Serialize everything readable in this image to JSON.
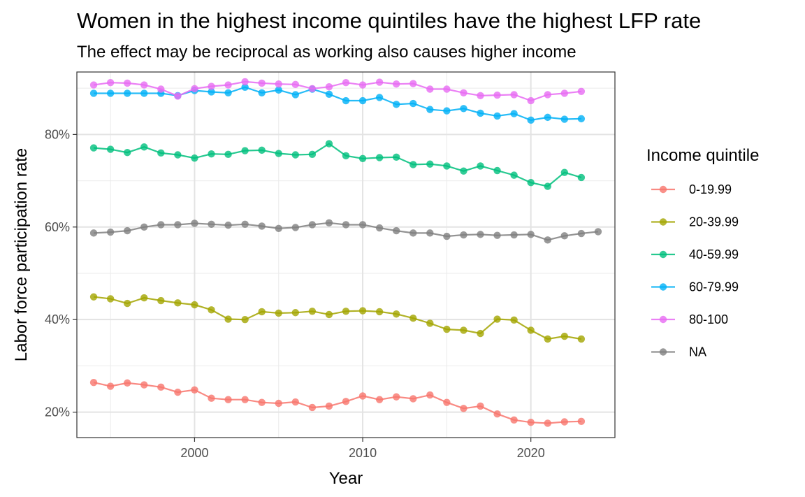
{
  "chart_data": {
    "type": "line",
    "title": "Women in the highest income quintiles have the highest LFP rate",
    "subtitle": "The effect may be reciprocal as working also causes higher income",
    "xlabel": "Year",
    "ylabel": "Labor force participation rate",
    "xlim": [
      1993,
      2025
    ],
    "ylim": [
      14.5,
      93.5
    ],
    "x_ticks": [
      2000,
      2010,
      2020
    ],
    "x_tick_labels": [
      "2000",
      "2010",
      "2020"
    ],
    "y_ticks": [
      20,
      40,
      60,
      80
    ],
    "y_tick_labels": [
      "20%",
      "40%",
      "60%",
      "80%"
    ],
    "grid": true,
    "legend": {
      "title": "Income quintile",
      "position": "right"
    },
    "series": [
      {
        "name": "0-19.99",
        "color": "#F8766D",
        "x": [
          1994,
          1995,
          1996,
          1997,
          1998,
          1999,
          2000,
          2001,
          2002,
          2003,
          2004,
          2005,
          2006,
          2007,
          2008,
          2009,
          2010,
          2011,
          2012,
          2013,
          2014,
          2015,
          2016,
          2017,
          2018,
          2019,
          2020,
          2021,
          2022,
          2023
        ],
        "values": [
          26.4,
          25.6,
          26.3,
          25.9,
          25.4,
          24.3,
          24.8,
          23.0,
          22.7,
          22.7,
          22.1,
          21.9,
          22.2,
          21.0,
          21.3,
          22.3,
          23.5,
          22.7,
          23.3,
          22.9,
          23.7,
          22.1,
          20.8,
          21.3,
          19.6,
          18.3,
          17.8,
          17.6,
          17.9,
          18.0
        ]
      },
      {
        "name": "20-39.99",
        "color": "#A3A500",
        "x": [
          1994,
          1995,
          1996,
          1997,
          1998,
          1999,
          2000,
          2001,
          2002,
          2003,
          2004,
          2005,
          2006,
          2007,
          2008,
          2009,
          2010,
          2011,
          2012,
          2013,
          2014,
          2015,
          2016,
          2017,
          2018,
          2019,
          2020,
          2021,
          2022,
          2023
        ],
        "values": [
          44.9,
          44.5,
          43.5,
          44.7,
          44.1,
          43.6,
          43.2,
          42.1,
          40.1,
          40.0,
          41.7,
          41.4,
          41.5,
          41.8,
          41.1,
          41.8,
          41.9,
          41.7,
          41.2,
          40.3,
          39.2,
          37.9,
          37.7,
          37.0,
          40.1,
          39.9,
          37.7,
          35.8,
          36.4,
          35.8
        ]
      },
      {
        "name": "40-59.99",
        "color": "#00BF7D",
        "x": [
          1994,
          1995,
          1996,
          1997,
          1998,
          1999,
          2000,
          2001,
          2002,
          2003,
          2004,
          2005,
          2006,
          2007,
          2008,
          2009,
          2010,
          2011,
          2012,
          2013,
          2014,
          2015,
          2016,
          2017,
          2018,
          2019,
          2020,
          2021,
          2022,
          2023
        ],
        "values": [
          77.1,
          76.8,
          76.1,
          77.3,
          76.0,
          75.6,
          74.9,
          75.8,
          75.7,
          76.5,
          76.6,
          75.9,
          75.6,
          75.7,
          78.0,
          75.4,
          74.8,
          75.0,
          75.1,
          73.5,
          73.6,
          73.2,
          72.1,
          73.2,
          72.2,
          71.2,
          69.6,
          68.8,
          71.8,
          70.7
        ]
      },
      {
        "name": "60-79.99",
        "color": "#00B0F6",
        "x": [
          1994,
          1995,
          1996,
          1997,
          1998,
          1999,
          2000,
          2001,
          2002,
          2003,
          2004,
          2005,
          2006,
          2007,
          2008,
          2009,
          2010,
          2011,
          2012,
          2013,
          2014,
          2015,
          2016,
          2017,
          2018,
          2019,
          2020,
          2021,
          2022,
          2023
        ],
        "values": [
          88.9,
          88.9,
          88.9,
          88.9,
          88.9,
          88.4,
          89.5,
          89.2,
          89.0,
          90.2,
          89.0,
          89.6,
          88.6,
          89.8,
          88.7,
          87.3,
          87.3,
          88.0,
          86.5,
          86.7,
          85.4,
          85.1,
          85.6,
          84.6,
          84.0,
          84.5,
          83.1,
          83.7,
          83.3,
          83.4
        ]
      },
      {
        "name": "80-100",
        "color": "#E76BF3",
        "x": [
          1994,
          1995,
          1996,
          1997,
          1998,
          1999,
          2000,
          2001,
          2002,
          2003,
          2004,
          2005,
          2006,
          2007,
          2008,
          2009,
          2010,
          2011,
          2012,
          2013,
          2014,
          2015,
          2016,
          2017,
          2018,
          2019,
          2020,
          2021,
          2022,
          2023
        ],
        "values": [
          90.7,
          91.2,
          91.1,
          90.7,
          89.8,
          88.3,
          89.9,
          90.4,
          90.7,
          91.4,
          91.1,
          90.9,
          90.8,
          89.9,
          90.3,
          91.2,
          90.7,
          91.3,
          90.9,
          91.0,
          89.8,
          89.8,
          89.0,
          88.4,
          88.5,
          88.6,
          87.3,
          88.6,
          88.9,
          89.3
        ]
      },
      {
        "name": "NA",
        "color": "#808080",
        "x": [
          1994,
          1995,
          1996,
          1997,
          1998,
          1999,
          2000,
          2001,
          2002,
          2003,
          2004,
          2005,
          2006,
          2007,
          2008,
          2009,
          2010,
          2011,
          2012,
          2013,
          2014,
          2015,
          2016,
          2017,
          2018,
          2019,
          2020,
          2021,
          2022,
          2023,
          2024
        ],
        "values": [
          58.7,
          58.9,
          59.2,
          60.0,
          60.5,
          60.5,
          60.8,
          60.6,
          60.4,
          60.6,
          60.2,
          59.7,
          59.9,
          60.5,
          60.9,
          60.5,
          60.5,
          59.8,
          59.2,
          58.7,
          58.7,
          58.0,
          58.3,
          58.4,
          58.2,
          58.3,
          58.4,
          57.2,
          58.1,
          58.6,
          59.0
        ]
      }
    ]
  }
}
